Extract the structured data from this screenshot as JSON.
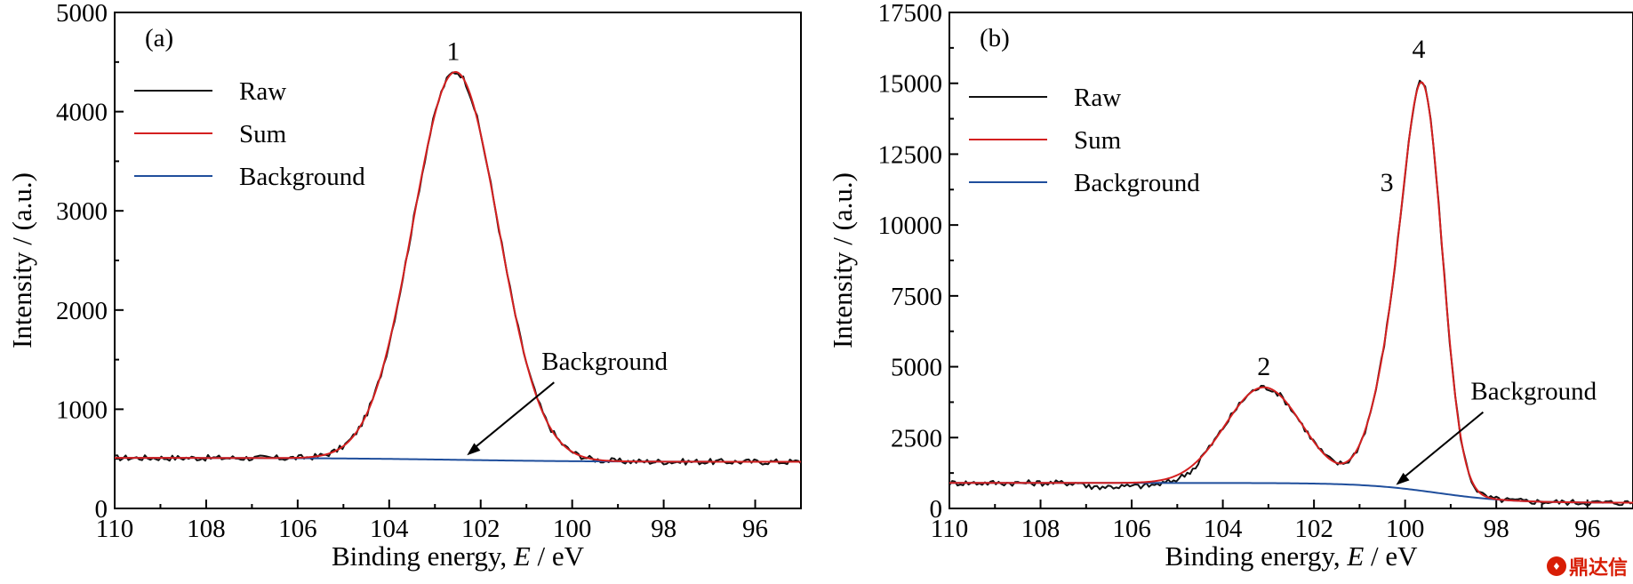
{
  "colors": {
    "raw": "#111111",
    "sum": "#d42020",
    "background": "#1f4e9c",
    "axis": "#000000"
  },
  "watermark": {
    "text": "鼎达信",
    "icon": "logo-icon"
  },
  "chart_data": [
    {
      "type": "line",
      "panel_label": "(a)",
      "xlabel": "Binding energy, E / eV",
      "ylabel": "Intensity / (a.u.)",
      "xlim": [
        110,
        95
      ],
      "ylim": [
        0,
        5000
      ],
      "x_ticks": [
        110,
        108,
        106,
        104,
        102,
        100,
        98,
        96
      ],
      "y_ticks": [
        0,
        1000,
        2000,
        3000,
        4000,
        5000
      ],
      "legend": {
        "position": "top-left",
        "entries": [
          "Raw",
          "Sum",
          "Background"
        ]
      },
      "peak_labels": [
        {
          "text": "1",
          "x": 102.6,
          "y": 4520
        }
      ],
      "annotation": {
        "text": "Background",
        "x": 102.3,
        "y": 500
      },
      "background_params": {
        "y_high": 510,
        "y_low": 470,
        "center": 102.5,
        "width": 1.5
      },
      "peaks": [
        {
          "label": "1",
          "center": 102.55,
          "height": 3910,
          "fwhm": 2.2
        }
      ],
      "series": [
        {
          "name": "Raw",
          "x": [
            110,
            109.5,
            109,
            108.5,
            108,
            107.5,
            107,
            106.5,
            106,
            105.5,
            105,
            104.5,
            104,
            103.5,
            103,
            102.8,
            102.6,
            102.4,
            102.2,
            102,
            101.5,
            101,
            100.5,
            100,
            99.5,
            99,
            98.5,
            98,
            97.5,
            97,
            96.5,
            96,
            95.5,
            95
          ],
          "y": [
            530,
            505,
            520,
            485,
            500,
            470,
            495,
            475,
            490,
            500,
            545,
            760,
            1450,
            2700,
            3950,
            4250,
            4390,
            4330,
            4080,
            3650,
            2500,
            1350,
            720,
            530,
            500,
            520,
            495,
            510,
            480,
            470,
            505,
            490,
            470,
            480
          ]
        },
        {
          "name": "Sum",
          "x": [
            110,
            109,
            108,
            107,
            106,
            105.5,
            105,
            104.5,
            104,
            103.5,
            103,
            102.8,
            102.6,
            102.5,
            102.4,
            102.2,
            102,
            101.5,
            101,
            100.5,
            100,
            99.5,
            99,
            98,
            97,
            96,
            95
          ],
          "y": [
            510,
            510,
            510,
            510,
            510,
            515,
            560,
            800,
            1450,
            2650,
            3880,
            4240,
            4410,
            4420,
            4390,
            4200,
            3850,
            2600,
            1420,
            780,
            540,
            490,
            480,
            475,
            472,
            470,
            470
          ]
        },
        {
          "name": "Background",
          "x": [
            110,
            108,
            106,
            104,
            103,
            102,
            101,
            100,
            98,
            96,
            95
          ],
          "y": [
            510,
            510,
            508,
            502,
            495,
            487,
            478,
            472,
            470,
            470,
            470
          ]
        }
      ]
    },
    {
      "type": "line",
      "panel_label": "(b)",
      "xlabel": "Binding energy, E / eV",
      "ylabel": "Intensity / (a.u.)",
      "xlim": [
        110,
        95
      ],
      "ylim": [
        0,
        17500
      ],
      "x_ticks": [
        110,
        108,
        106,
        104,
        102,
        100,
        98,
        96
      ],
      "y_ticks": [
        0,
        2500,
        5000,
        7500,
        10000,
        12500,
        15000,
        17500
      ],
      "legend": {
        "position": "top-left",
        "entries": [
          "Raw",
          "Sum",
          "Background"
        ]
      },
      "peak_labels": [
        {
          "text": "2",
          "x": 103.1,
          "y": 4700
        },
        {
          "text": "3",
          "x": 100.4,
          "y": 11200
        },
        {
          "text": "4",
          "x": 99.7,
          "y": 15900
        }
      ],
      "annotation": {
        "text": "Background",
        "x": 100.2,
        "y": 700
      },
      "background_params": {
        "y_high": 900,
        "y_low": 200,
        "center": 99.3,
        "width": 0.8
      },
      "peaks": [
        {
          "label": "2",
          "center": 103.1,
          "height": 3380,
          "fwhm": 2.0
        },
        {
          "label": "3",
          "center": 100.05,
          "height": 5500,
          "fwhm": 1.3
        },
        {
          "label": "4",
          "center": 99.55,
          "height": 10500,
          "fwhm": 0.95
        }
      ],
      "series": [
        {
          "name": "Raw",
          "x": [
            110,
            109,
            108,
            107,
            106,
            105.5,
            105,
            104.5,
            104,
            103.5,
            103,
            102.5,
            102,
            101.5,
            101.3,
            101,
            100.5,
            100.2,
            100,
            99.8,
            99.6,
            99.5,
            99.3,
            99,
            98.7,
            98.5,
            98,
            97,
            96,
            95
          ],
          "y": [
            880,
            860,
            840,
            800,
            720,
            700,
            850,
            1500,
            2700,
            3800,
            4100,
            3400,
            2000,
            1150,
            1050,
            1350,
            4500,
            7700,
            10500,
            12800,
            15100,
            15250,
            13000,
            8000,
            3500,
            1600,
            500,
            250,
            200,
            200
          ]
        },
        {
          "name": "Sum",
          "x": [
            110,
            108,
            106,
            105,
            104.5,
            104,
            103.5,
            103,
            102.5,
            102,
            101.5,
            101.3,
            101,
            100.5,
            100.2,
            100,
            99.8,
            99.6,
            99.5,
            99.3,
            99,
            98.7,
            98.5,
            98,
            97,
            96,
            95
          ],
          "y": [
            900,
            900,
            920,
            990,
            1450,
            2600,
            3800,
            4200,
            3450,
            2050,
            1180,
            1080,
            1420,
            4600,
            7800,
            10700,
            13000,
            15200,
            15300,
            13100,
            8100,
            3600,
            1650,
            520,
            260,
            210,
            200
          ]
        },
        {
          "name": "Background",
          "x": [
            110,
            106,
            104,
            102,
            101,
            100.5,
            100,
            99.5,
            99,
            98.5,
            98,
            97,
            96,
            95
          ],
          "y": [
            900,
            910,
            900,
            820,
            770,
            740,
            680,
            560,
            380,
            260,
            220,
            205,
            200,
            200
          ]
        }
      ]
    }
  ]
}
